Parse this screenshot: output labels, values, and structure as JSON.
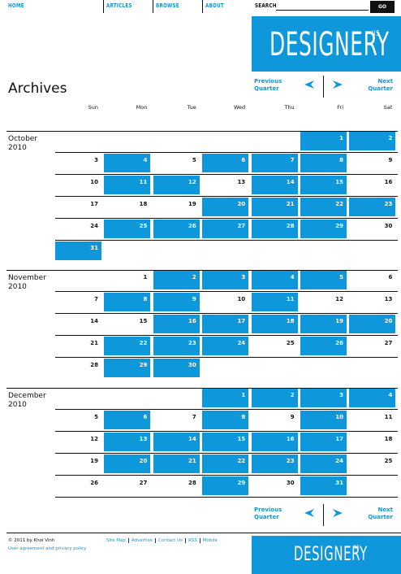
{
  "nav": {
    "links": [
      "HOME",
      "ARTICLES",
      "BROWSE",
      "ABOUT"
    ],
    "search_label": "SEARCH",
    "search_button": "GO"
  },
  "logo": {
    "name": "DESIGNERY",
    "suffix": "US"
  },
  "page_title": "Archives",
  "pager": {
    "previous": "Previous Quarter",
    "next": "Next Quarter"
  },
  "weekdays": [
    "Sun",
    "Mon",
    "Tue",
    "Wed",
    "Thu",
    "Fri",
    "Sat"
  ],
  "months": [
    {
      "month": "October",
      "year": "2010",
      "weeks": [
        [
          null,
          null,
          null,
          null,
          null,
          {
            "day": 1,
            "posts": true
          },
          {
            "day": 2,
            "posts": true
          }
        ],
        [
          {
            "day": 3,
            "posts": false
          },
          {
            "day": 4,
            "posts": true
          },
          {
            "day": 5,
            "posts": false
          },
          {
            "day": 6,
            "posts": true
          },
          {
            "day": 7,
            "posts": true
          },
          {
            "day": 8,
            "posts": true
          },
          {
            "day": 9,
            "posts": false
          }
        ],
        [
          {
            "day": 10,
            "posts": false
          },
          {
            "day": 11,
            "posts": true
          },
          {
            "day": 12,
            "posts": true
          },
          {
            "day": 13,
            "posts": false
          },
          {
            "day": 14,
            "posts": true
          },
          {
            "day": 15,
            "posts": true
          },
          {
            "day": 16,
            "posts": false
          }
        ],
        [
          {
            "day": 17,
            "posts": false
          },
          {
            "day": 18,
            "posts": false
          },
          {
            "day": 19,
            "posts": false
          },
          {
            "day": 20,
            "posts": true
          },
          {
            "day": 21,
            "posts": true
          },
          {
            "day": 22,
            "posts": true
          },
          {
            "day": 23,
            "posts": true
          }
        ],
        [
          {
            "day": 24,
            "posts": false
          },
          {
            "day": 25,
            "posts": true
          },
          {
            "day": 26,
            "posts": true
          },
          {
            "day": 27,
            "posts": true
          },
          {
            "day": 28,
            "posts": true
          },
          {
            "day": 29,
            "posts": true
          },
          {
            "day": 30,
            "posts": false
          }
        ],
        [
          {
            "day": 31,
            "posts": true
          }
        ]
      ]
    },
    {
      "month": "November",
      "year": "2010",
      "weeks": [
        [
          null,
          {
            "day": 1,
            "posts": false
          },
          {
            "day": 2,
            "posts": true
          },
          {
            "day": 3,
            "posts": true
          },
          {
            "day": 4,
            "posts": true
          },
          {
            "day": 5,
            "posts": true
          },
          {
            "day": 6,
            "posts": false
          }
        ],
        [
          {
            "day": 7,
            "posts": false
          },
          {
            "day": 8,
            "posts": true
          },
          {
            "day": 9,
            "posts": true
          },
          {
            "day": 10,
            "posts": false
          },
          {
            "day": 11,
            "posts": true
          },
          {
            "day": 12,
            "posts": false
          },
          {
            "day": 13,
            "posts": false
          }
        ],
        [
          {
            "day": 14,
            "posts": false
          },
          {
            "day": 15,
            "posts": false
          },
          {
            "day": 16,
            "posts": true
          },
          {
            "day": 17,
            "posts": true
          },
          {
            "day": 18,
            "posts": true
          },
          {
            "day": 19,
            "posts": true
          },
          {
            "day": 20,
            "posts": true
          }
        ],
        [
          {
            "day": 21,
            "posts": false
          },
          {
            "day": 22,
            "posts": true
          },
          {
            "day": 23,
            "posts": true
          },
          {
            "day": 24,
            "posts": true
          },
          {
            "day": 25,
            "posts": false
          },
          {
            "day": 26,
            "posts": true
          },
          {
            "day": 27,
            "posts": false
          }
        ],
        [
          {
            "day": 28,
            "posts": false
          },
          {
            "day": 29,
            "posts": true
          },
          {
            "day": 30,
            "posts": true
          }
        ]
      ]
    },
    {
      "month": "December",
      "year": "2010",
      "weeks": [
        [
          null,
          null,
          null,
          {
            "day": 1,
            "posts": true
          },
          {
            "day": 2,
            "posts": true
          },
          {
            "day": 3,
            "posts": true
          },
          {
            "day": 4,
            "posts": true
          }
        ],
        [
          {
            "day": 5,
            "posts": false
          },
          {
            "day": 6,
            "posts": true
          },
          {
            "day": 7,
            "posts": false
          },
          {
            "day": 8,
            "posts": true
          },
          {
            "day": 9,
            "posts": false
          },
          {
            "day": 10,
            "posts": true
          },
          {
            "day": 11,
            "posts": false
          }
        ],
        [
          {
            "day": 12,
            "posts": false
          },
          {
            "day": 13,
            "posts": true
          },
          {
            "day": 14,
            "posts": true
          },
          {
            "day": 15,
            "posts": true
          },
          {
            "day": 16,
            "posts": true
          },
          {
            "day": 17,
            "posts": true
          },
          {
            "day": 18,
            "posts": false
          }
        ],
        [
          {
            "day": 19,
            "posts": false
          },
          {
            "day": 20,
            "posts": true
          },
          {
            "day": 21,
            "posts": true
          },
          {
            "day": 22,
            "posts": true
          },
          {
            "day": 23,
            "posts": true
          },
          {
            "day": 24,
            "posts": true
          },
          {
            "day": 25,
            "posts": false
          }
        ],
        [
          {
            "day": 26,
            "posts": false
          },
          {
            "day": 27,
            "posts": false
          },
          {
            "day": 28,
            "posts": false
          },
          {
            "day": 29,
            "posts": true
          },
          {
            "day": 30,
            "posts": false
          },
          {
            "day": 31,
            "posts": true
          }
        ]
      ]
    }
  ],
  "footer": {
    "copyright": "© 2011 by Khoi Vinh",
    "policy": "User agreement and privacy policy",
    "links": [
      "Site Map",
      "Advertise",
      "Contact Us",
      "RSS",
      "Mobile"
    ]
  }
}
